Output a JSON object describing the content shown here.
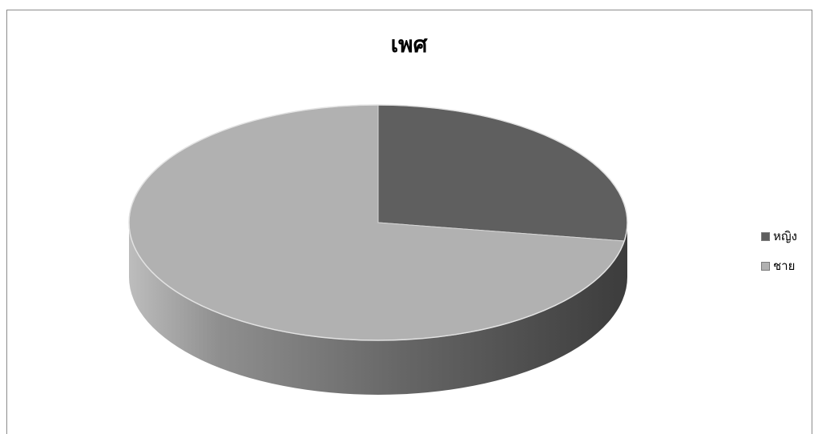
{
  "chart_data": {
    "type": "pie",
    "title": "เพศ",
    "style": "3d",
    "legend_position": "right",
    "categories": [
      "หญิง",
      "ชาย"
    ],
    "values": [
      27.5,
      72.5
    ],
    "colors": [
      "#5f5f5f",
      "#b1b1b1"
    ]
  }
}
